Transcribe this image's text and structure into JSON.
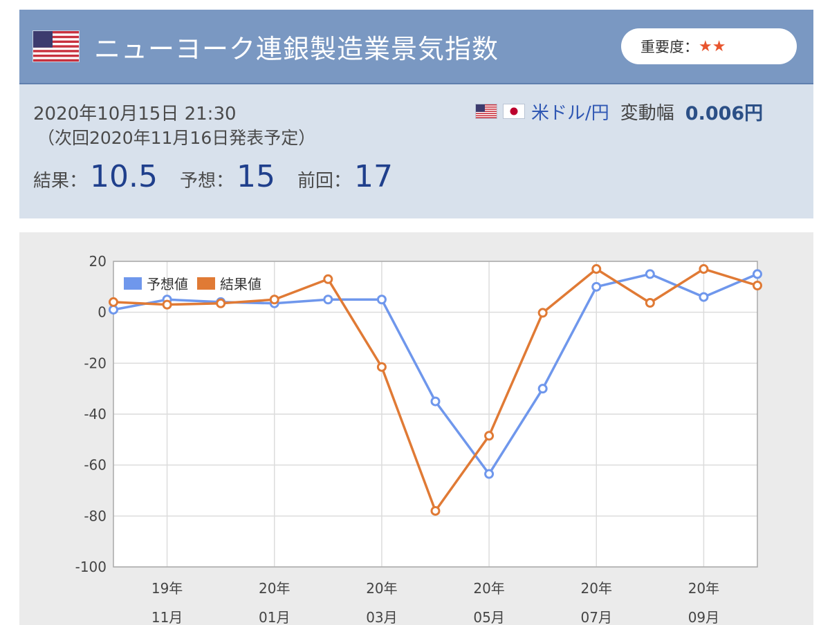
{
  "header": {
    "title": "ニューヨーク連銀製造業景気指数",
    "importance_label": "重要度：",
    "importance_stars": "★★"
  },
  "info": {
    "date": "2020年10月15日 21:30",
    "next_release": "（次回2020年11月16日発表予定）",
    "pair": "米ドル/円",
    "change_label": "変動幅",
    "change_value": "0.006円",
    "result_label": "結果：",
    "result_value": "10.5",
    "forecast_label": "予想：",
    "forecast_value": "15",
    "previous_label": "前回：",
    "previous_value": "17"
  },
  "colors": {
    "forecast": "#6f97ec",
    "result": "#e07a35"
  },
  "chart_data": {
    "type": "line",
    "x": [
      "2019-10",
      "2019-11",
      "2019-12",
      "2020-01",
      "2020-02",
      "2020-03",
      "2020-04",
      "2020-05",
      "2020-06",
      "2020-07",
      "2020-08",
      "2020-09",
      "2020-10"
    ],
    "x_tick_labels": [
      {
        "at": "2019-11",
        "year": "19年",
        "month": "11月"
      },
      {
        "at": "2020-01",
        "year": "20年",
        "month": "01月"
      },
      {
        "at": "2020-03",
        "year": "20年",
        "month": "03月"
      },
      {
        "at": "2020-05",
        "year": "20年",
        "month": "05月"
      },
      {
        "at": "2020-07",
        "year": "20年",
        "month": "07月"
      },
      {
        "at": "2020-09",
        "year": "20年",
        "month": "09月"
      }
    ],
    "series": [
      {
        "name": "予想値",
        "values": [
          1,
          5,
          4,
          3.5,
          5,
          5,
          -35,
          -63.5,
          -30,
          10,
          15,
          6,
          15
        ]
      },
      {
        "name": "結果値",
        "values": [
          4,
          3,
          3.5,
          5,
          13,
          -21.5,
          -78,
          -48.5,
          -0.2,
          17,
          3.7,
          17,
          10.5
        ]
      }
    ],
    "ylim": [
      -100,
      20
    ],
    "yticks": [
      20,
      0,
      -20,
      -40,
      -60,
      -80,
      -100
    ],
    "grid": true,
    "legend": "top-left"
  }
}
